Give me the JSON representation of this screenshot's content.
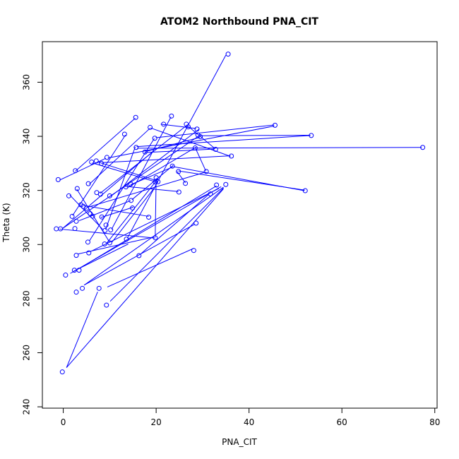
{
  "chart_data": {
    "type": "scatter",
    "title": "ATOM2 Northbound PNA_CIT",
    "xlabel": "PNA_CIT",
    "ylabel": "Theta (K)",
    "xlim": [
      -4.5,
      80.5
    ],
    "ylim": [
      239.5,
      375
    ],
    "xticks": [
      0,
      20,
      40,
      60,
      80
    ],
    "yticks": [
      240,
      260,
      280,
      300,
      320,
      340,
      360
    ],
    "grid": false,
    "series": [
      {
        "color": "#0000FF",
        "points": [
          [
            35.5,
            370.4
          ],
          [
            -0.2,
            252.9
          ],
          [
            23.3,
            347.5
          ],
          [
            15.6,
            347.0
          ],
          [
            26.5,
            344.5
          ],
          [
            21.6,
            344.5
          ],
          [
            45.6,
            344.1
          ],
          [
            26.9,
            343.5
          ],
          [
            18.7,
            343.3
          ],
          [
            28.8,
            342.7
          ],
          [
            13.2,
            340.8
          ],
          [
            29.0,
            340.5
          ],
          [
            53.4,
            340.3
          ],
          [
            29.5,
            339.9
          ],
          [
            19.7,
            339.3
          ],
          [
            77.4,
            335.9
          ],
          [
            15.7,
            335.9
          ],
          [
            28.4,
            335.7
          ],
          [
            32.8,
            335.2
          ],
          [
            17.6,
            334.2
          ],
          [
            36.2,
            332.7
          ],
          [
            9.4,
            332.2
          ],
          [
            7.1,
            330.9
          ],
          [
            6.1,
            330.5
          ],
          [
            8.2,
            330.0
          ],
          [
            23.5,
            329.0
          ],
          [
            2.6,
            327.3
          ],
          [
            24.8,
            327.0
          ],
          [
            30.8,
            327.0
          ],
          [
            20.0,
            324.7
          ],
          [
            -1.1,
            324.0
          ],
          [
            20.4,
            323.2
          ],
          [
            19.8,
            323.1
          ],
          [
            26.3,
            322.6
          ],
          [
            5.4,
            322.5
          ],
          [
            14.5,
            322.4
          ],
          [
            35.0,
            322.2
          ],
          [
            33.0,
            322.0
          ],
          [
            13.5,
            321.3
          ],
          [
            3.0,
            320.7
          ],
          [
            52.1,
            319.9
          ],
          [
            24.9,
            319.4
          ],
          [
            7.2,
            319.2
          ],
          [
            8.0,
            318.6
          ],
          [
            10.0,
            318.0
          ],
          [
            31.7,
            318.7
          ],
          [
            1.2,
            318.0
          ],
          [
            14.6,
            316.3
          ],
          [
            3.8,
            314.7
          ],
          [
            4.3,
            314.1
          ],
          [
            14.9,
            313.5
          ],
          [
            5.0,
            313.4
          ],
          [
            5.8,
            311.4
          ],
          [
            1.9,
            310.4
          ],
          [
            6.3,
            310.5
          ],
          [
            8.3,
            310.2
          ],
          [
            18.4,
            310.1
          ],
          [
            2.8,
            308.6
          ],
          [
            28.6,
            307.9
          ],
          [
            9.2,
            307.2
          ],
          [
            -1.5,
            305.8
          ],
          [
            -0.6,
            305.8
          ],
          [
            2.5,
            305.9
          ],
          [
            9.0,
            305.2
          ],
          [
            10.2,
            305.4
          ],
          [
            19.8,
            302.5
          ],
          [
            13.6,
            302.0
          ],
          [
            5.3,
            300.9
          ],
          [
            10.0,
            300.6
          ],
          [
            8.9,
            300.2
          ],
          [
            28.1,
            297.8
          ],
          [
            5.5,
            296.9
          ],
          [
            2.8,
            296.0
          ],
          [
            16.3,
            295.9
          ],
          [
            2.4,
            290.5
          ],
          [
            3.4,
            290.5
          ],
          [
            0.5,
            288.7
          ],
          [
            4.1,
            283.8
          ],
          [
            7.7,
            283.8
          ],
          [
            2.8,
            282.4
          ],
          [
            9.3,
            277.6
          ]
        ],
        "segments": [
          [
            [
              0.7,
              254.5
            ],
            [
              34.5,
              320.6
            ]
          ],
          [
            [
              0.7,
              254.5
            ],
            [
              7.4,
              282.5
            ]
          ],
          [
            [
              10.1,
              279.0
            ],
            [
              34.5,
              320.9
            ]
          ],
          [
            [
              4.5,
              285.0
            ],
            [
              34.5,
              321.2
            ]
          ],
          [
            [
              4.5,
              285.0
            ],
            [
              28.3,
              307.5
            ]
          ],
          [
            [
              9.5,
              284.3
            ],
            [
              28.0,
              298.5
            ]
          ],
          [
            [
              3.5,
              291.2
            ],
            [
              33.0,
              321.7
            ]
          ],
          [
            [
              1.5,
              289.3
            ],
            [
              34.0,
              321.4
            ]
          ],
          [
            [
              2.2,
              290.1
            ],
            [
              14.0,
              300.2
            ]
          ],
          [
            [
              6.0,
              297.5
            ],
            [
              33.5,
              320.7
            ]
          ],
          [
            [
              3.2,
              296.5
            ],
            [
              19.5,
              302.8
            ]
          ],
          [
            [
              16.8,
              296.7
            ],
            [
              31.3,
              318.5
            ]
          ],
          [
            [
              10.5,
              300.9
            ],
            [
              20.0,
              321.8
            ]
          ],
          [
            [
              9.4,
              300.6
            ],
            [
              20.0,
              323.5
            ]
          ],
          [
            [
              13.8,
              302.4
            ],
            [
              35.0,
              370.0
            ]
          ],
          [
            [
              5.6,
              301.3
            ],
            [
              19.6,
              339.2
            ]
          ],
          [
            [
              -0.1,
              306.0
            ],
            [
              19.5,
              334.7
            ]
          ],
          [
            [
              -0.1,
              306.0
            ],
            [
              29.0,
              339.9
            ]
          ],
          [
            [
              2.0,
              310.7
            ],
            [
              13.4,
              340.5
            ]
          ],
          [
            [
              1.4,
              318.3
            ],
            [
              8.5,
              305.6
            ]
          ],
          [
            [
              -0.8,
              323.8
            ],
            [
              9.2,
              331.9
            ]
          ],
          [
            [
              2.6,
              327.1
            ],
            [
              15.5,
              346.7
            ]
          ],
          [
            [
              -0.8,
              305.7
            ],
            [
              19.8,
              302.4
            ]
          ],
          [
            [
              2.9,
              320.5
            ],
            [
              10.0,
              300.8
            ]
          ],
          [
            [
              3.4,
              308.8
            ],
            [
              14.5,
              316.2
            ]
          ],
          [
            [
              4.4,
              314.4
            ],
            [
              18.4,
              310.4
            ]
          ],
          [
            [
              5.1,
              313.7
            ],
            [
              30.7,
              326.8
            ]
          ],
          [
            [
              5.6,
              322.3
            ],
            [
              18.7,
              343.0
            ]
          ],
          [
            [
              6.2,
              330.2
            ],
            [
              20.4,
              322.9
            ]
          ],
          [
            [
              7.3,
              330.6
            ],
            [
              20.3,
              323.5
            ]
          ],
          [
            [
              7.9,
              318.9
            ],
            [
              26.7,
              344.2
            ]
          ],
          [
            [
              8.4,
              330.3
            ],
            [
              36.0,
              332.8
            ]
          ],
          [
            [
              8.1,
              310.0
            ],
            [
              15.1,
              313.8
            ]
          ],
          [
            [
              9.1,
              305.5
            ],
            [
              15.5,
              336.1
            ]
          ],
          [
            [
              9.6,
              332.0
            ],
            [
              45.4,
              343.8
            ]
          ],
          [
            [
              10.2,
              317.8
            ],
            [
              29.2,
              342.6
            ]
          ],
          [
            [
              10.4,
              305.6
            ],
            [
              23.2,
              347.2
            ]
          ],
          [
            [
              13.3,
              321.5
            ],
            [
              24.8,
              319.6
            ]
          ],
          [
            [
              13.8,
              321.0
            ],
            [
              28.6,
              336.0
            ]
          ],
          [
            [
              14.8,
              316.6
            ],
            [
              23.7,
              329.3
            ]
          ],
          [
            [
              14.5,
              322.1
            ],
            [
              23.6,
              328.7
            ]
          ],
          [
            [
              15.8,
              336.2
            ],
            [
              53.2,
              340.3
            ]
          ],
          [
            [
              15.9,
              335.6
            ],
            [
              77.2,
              335.9
            ]
          ],
          [
            [
              17.5,
              334.0
            ],
            [
              32.6,
              335.3
            ]
          ],
          [
            [
              18.0,
              334.5
            ],
            [
              29.4,
              339.6
            ]
          ],
          [
            [
              18.8,
              343.1
            ],
            [
              36.0,
              332.6
            ]
          ],
          [
            [
              19.9,
              339.5
            ],
            [
              45.4,
              344.2
            ]
          ],
          [
            [
              20.0,
              324.5
            ],
            [
              19.8,
              302.7
            ]
          ],
          [
            [
              21.0,
              344.5
            ],
            [
              28.6,
              342.9
            ]
          ],
          [
            [
              23.7,
              328.8
            ],
            [
              51.9,
              319.9
            ]
          ],
          [
            [
              24.5,
              327.0
            ],
            [
              26.3,
              322.8
            ]
          ],
          [
            [
              28.5,
              335.5
            ],
            [
              30.7,
              327.2
            ]
          ],
          [
            [
              26.9,
              343.7
            ],
            [
              32.7,
              335.4
            ]
          ],
          [
            [
              29.4,
              340.2
            ],
            [
              53.2,
              340.4
            ]
          ],
          [
            [
              24.8,
              327.2
            ],
            [
              52.0,
              320.1
            ]
          ]
        ]
      }
    ]
  }
}
